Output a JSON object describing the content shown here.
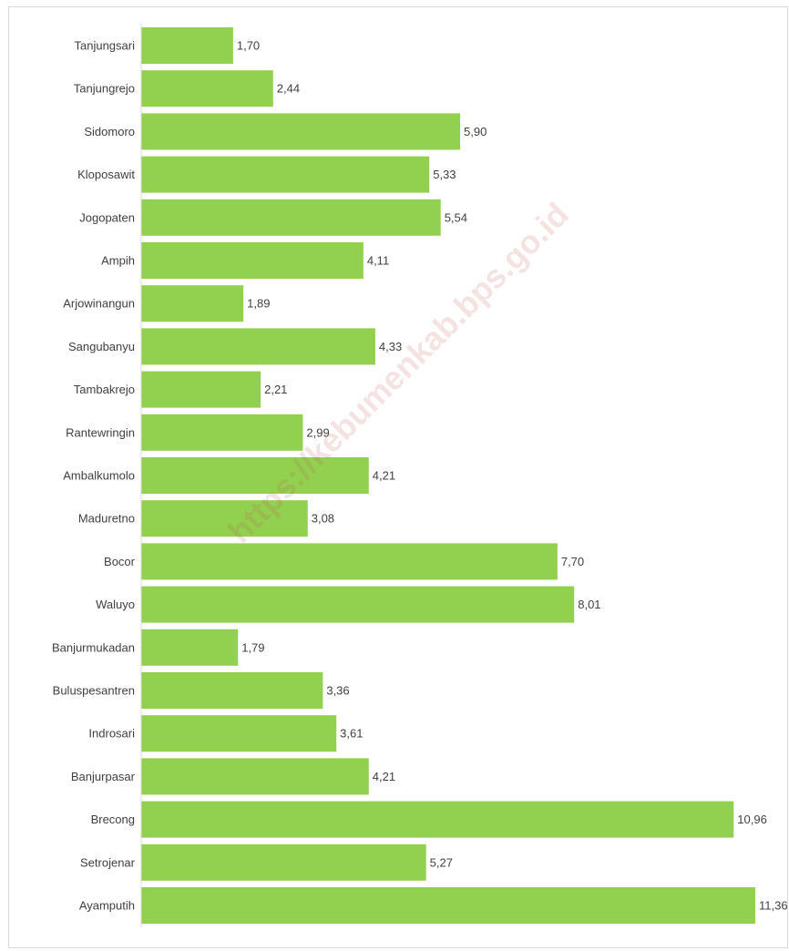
{
  "watermark": "https://kebumenkab.bps.go.id",
  "chart_data": {
    "type": "bar",
    "orientation": "horizontal",
    "title": "",
    "xlabel": "",
    "ylabel": "",
    "grid": false,
    "legend": "none",
    "bar_color": "#92d050",
    "categories": [
      "Tanjungsari",
      "Tanjungrejo",
      "Sidomoro",
      "Kloposawit",
      "Jogopaten",
      "Ampih",
      "Arjowinangun",
      "Sangubanyu",
      "Tambakrejo",
      "Rantewringin",
      "Ambalkumolo",
      "Maduretno",
      "Bocor",
      "Waluyo",
      "Banjurmukadan",
      "Buluspesantren",
      "Indrosari",
      "Banjurpasar",
      "Brecong",
      "Setrojenar",
      "Ayamputih"
    ],
    "values": [
      1.7,
      2.44,
      5.9,
      5.33,
      5.54,
      4.11,
      1.89,
      4.33,
      2.21,
      2.99,
      4.21,
      3.08,
      7.7,
      8.01,
      1.79,
      3.36,
      3.61,
      4.21,
      10.96,
      5.27,
      11.36
    ],
    "value_labels": [
      "1,70",
      "2,44",
      "5,90",
      "5,33",
      "5,54",
      "4,11",
      "1,89",
      "4,33",
      "2,21",
      "2,99",
      "4,21",
      "3,08",
      "7,70",
      "8,01",
      "1,79",
      "3,36",
      "3,61",
      "4,21",
      "10,96",
      "5,27",
      "11,36"
    ],
    "xlim": [
      0,
      11.36
    ]
  }
}
